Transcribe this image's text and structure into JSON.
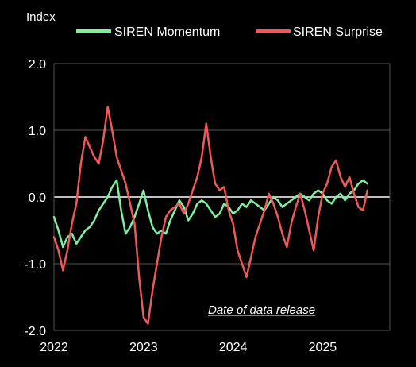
{
  "chart_data": {
    "type": "line",
    "ylabel": "Index",
    "ylim": [
      -2.0,
      2.0
    ],
    "yticks": [
      "2.0",
      "1.0",
      "0.0",
      "-1.0",
      "-2.0"
    ],
    "xlim": [
      2022.0,
      2025.75
    ],
    "xticks": [
      "2022",
      "2023",
      "2024",
      "2025"
    ],
    "grid": true,
    "legend_position": "top",
    "annotation": "Date of data release",
    "colors": {
      "background": "#000000",
      "momentum": "#7CF0A0",
      "surprise": "#F05858",
      "grid": "#555555",
      "zero_line": "#ffffff"
    },
    "series": [
      {
        "name": "SIREN Momentum",
        "x": [
          2022.0,
          2022.05,
          2022.1,
          2022.15,
          2022.2,
          2022.25,
          2022.3,
          2022.35,
          2022.4,
          2022.45,
          2022.5,
          2022.55,
          2022.6,
          2022.65,
          2022.7,
          2022.75,
          2022.8,
          2022.85,
          2022.9,
          2022.95,
          2023.0,
          2023.05,
          2023.1,
          2023.15,
          2023.2,
          2023.25,
          2023.3,
          2023.35,
          2023.4,
          2023.45,
          2023.5,
          2023.55,
          2023.6,
          2023.65,
          2023.7,
          2023.75,
          2023.8,
          2023.85,
          2023.9,
          2023.95,
          2024.0,
          2024.05,
          2024.1,
          2024.15,
          2024.2,
          2024.25,
          2024.3,
          2024.35,
          2024.4,
          2024.45,
          2024.5,
          2024.55,
          2024.6,
          2024.65,
          2024.7,
          2024.75,
          2024.8,
          2024.85,
          2024.9,
          2024.95,
          2025.0,
          2025.05,
          2025.1,
          2025.15,
          2025.2,
          2025.25,
          2025.3,
          2025.35,
          2025.4,
          2025.45,
          2025.5
        ],
        "values": [
          -0.3,
          -0.5,
          -0.75,
          -0.6,
          -0.55,
          -0.7,
          -0.6,
          -0.5,
          -0.45,
          -0.35,
          -0.2,
          -0.1,
          0.0,
          0.15,
          0.25,
          -0.2,
          -0.55,
          -0.45,
          -0.3,
          -0.1,
          0.1,
          -0.2,
          -0.45,
          -0.55,
          -0.5,
          -0.55,
          -0.35,
          -0.2,
          -0.05,
          -0.15,
          -0.35,
          -0.25,
          -0.1,
          -0.05,
          -0.1,
          -0.2,
          -0.3,
          -0.25,
          -0.1,
          -0.15,
          -0.25,
          -0.2,
          -0.1,
          -0.15,
          -0.05,
          -0.1,
          -0.15,
          -0.2,
          -0.1,
          0.0,
          -0.05,
          -0.15,
          -0.1,
          -0.05,
          0.0,
          0.05,
          0.0,
          -0.05,
          0.05,
          0.1,
          0.05,
          -0.05,
          -0.1,
          0.0,
          0.05,
          -0.05,
          0.05,
          0.1,
          0.2,
          0.25,
          0.2
        ]
      },
      {
        "name": "SIREN Surprise",
        "x": [
          2022.0,
          2022.05,
          2022.1,
          2022.15,
          2022.2,
          2022.25,
          2022.3,
          2022.35,
          2022.4,
          2022.45,
          2022.5,
          2022.55,
          2022.6,
          2022.65,
          2022.7,
          2022.75,
          2022.8,
          2022.85,
          2022.9,
          2022.95,
          2023.0,
          2023.05,
          2023.1,
          2023.15,
          2023.2,
          2023.25,
          2023.3,
          2023.35,
          2023.4,
          2023.45,
          2023.5,
          2023.55,
          2023.6,
          2023.65,
          2023.7,
          2023.75,
          2023.8,
          2023.85,
          2023.9,
          2023.95,
          2024.0,
          2024.05,
          2024.1,
          2024.15,
          2024.2,
          2024.25,
          2024.3,
          2024.35,
          2024.4,
          2024.45,
          2024.5,
          2024.55,
          2024.6,
          2024.65,
          2024.7,
          2024.75,
          2024.8,
          2024.85,
          2024.9,
          2024.95,
          2025.0,
          2025.05,
          2025.1,
          2025.15,
          2025.2,
          2025.25,
          2025.3,
          2025.35,
          2025.4,
          2025.45,
          2025.5
        ],
        "values": [
          -0.6,
          -0.8,
          -1.1,
          -0.8,
          -0.4,
          -0.1,
          0.5,
          0.9,
          0.75,
          0.6,
          0.5,
          0.85,
          1.35,
          1.0,
          0.6,
          0.4,
          0.2,
          -0.1,
          -0.4,
          -1.2,
          -1.8,
          -1.9,
          -1.4,
          -1.0,
          -0.6,
          -0.3,
          -0.2,
          -0.15,
          -0.1,
          -0.25,
          -0.1,
          0.1,
          0.3,
          0.6,
          1.1,
          0.6,
          0.2,
          0.1,
          0.15,
          -0.2,
          -0.4,
          -0.8,
          -1.0,
          -1.2,
          -0.9,
          -0.6,
          -0.4,
          -0.2,
          0.05,
          -0.1,
          -0.3,
          -0.55,
          -0.75,
          -0.4,
          -0.15,
          0.05,
          -0.2,
          -0.5,
          -0.8,
          -0.3,
          0.05,
          0.2,
          0.45,
          0.55,
          0.3,
          0.15,
          0.3,
          0.05,
          -0.15,
          -0.2,
          0.1
        ]
      }
    ]
  }
}
